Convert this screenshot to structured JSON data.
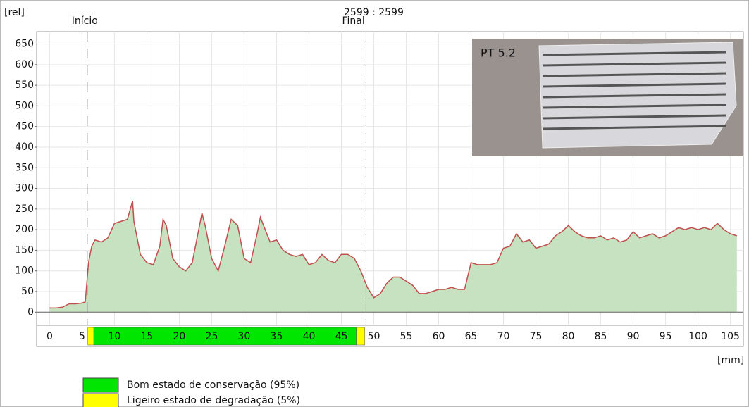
{
  "chart_data": {
    "type": "area",
    "y_label": "[rel]",
    "x_label": "[mm]",
    "readout": "2599 : 2599",
    "inset_label": "PT 5.2",
    "markers": [
      {
        "label": "Início",
        "x": 5.8
      },
      {
        "label": "Final",
        "x": 48.8
      }
    ],
    "x": [
      0,
      1,
      2,
      3,
      4,
      5,
      5.5,
      6,
      6.5,
      7,
      8,
      9,
      10,
      11,
      12,
      12.8,
      13,
      14,
      15,
      16,
      17,
      17.5,
      18,
      19,
      20,
      21,
      22,
      23,
      23.5,
      24,
      25,
      26,
      27,
      28,
      29,
      30,
      31,
      32,
      32.5,
      33,
      34,
      35,
      36,
      37,
      38,
      39,
      40,
      41,
      42,
      43,
      44,
      45,
      46,
      47,
      48,
      49,
      50,
      51,
      52,
      53,
      54,
      55,
      56,
      57,
      58,
      59,
      60,
      61,
      62,
      63,
      64,
      65,
      66,
      67,
      68,
      69,
      70,
      71,
      72,
      73,
      74,
      75,
      76,
      77,
      78,
      79,
      80,
      81,
      82,
      83,
      84,
      85,
      86,
      87,
      88,
      89,
      90,
      91,
      92,
      93,
      94,
      95,
      96,
      97,
      98,
      99,
      100,
      101,
      102,
      103,
      104,
      105,
      106
    ],
    "values": [
      10,
      10,
      12,
      20,
      20,
      22,
      25,
      120,
      160,
      175,
      170,
      180,
      215,
      220,
      225,
      270,
      220,
      140,
      120,
      115,
      160,
      225,
      210,
      130,
      110,
      100,
      120,
      200,
      240,
      210,
      130,
      100,
      160,
      225,
      210,
      130,
      120,
      190,
      230,
      210,
      170,
      175,
      150,
      140,
      135,
      140,
      115,
      120,
      140,
      125,
      120,
      140,
      140,
      130,
      100,
      60,
      35,
      45,
      70,
      85,
      85,
      75,
      65,
      45,
      45,
      50,
      55,
      55,
      60,
      55,
      55,
      120,
      115,
      115,
      115,
      120,
      155,
      160,
      190,
      170,
      175,
      155,
      160,
      165,
      185,
      195,
      210,
      195,
      185,
      180,
      180,
      185,
      175,
      180,
      170,
      175,
      195,
      180,
      185,
      190,
      180,
      185,
      195,
      205,
      200,
      205,
      200,
      205,
      200,
      215,
      200,
      190,
      185
    ],
    "color": "#c0504d",
    "fill_color": "#c6e2c0",
    "bands": [
      {
        "name": "Bom estado de conservação (95%)",
        "color": "#00e600",
        "ranges": [
          [
            6.8,
            47.3
          ]
        ]
      },
      {
        "name": "Ligeiro estado de degradação (5%)",
        "color": "#ffff00",
        "ranges": [
          [
            5.9,
            6.8
          ],
          [
            47.3,
            48.6
          ]
        ]
      }
    ],
    "xlim": [
      -2,
      107
    ],
    "ylim": [
      -32,
      680
    ],
    "xticks": [
      0,
      5,
      10,
      15,
      20,
      25,
      30,
      35,
      40,
      45,
      50,
      55,
      60,
      65,
      70,
      75,
      80,
      85,
      90,
      95,
      100,
      105
    ],
    "yticks": [
      0,
      50,
      100,
      150,
      200,
      250,
      300,
      350,
      400,
      450,
      500,
      550,
      600,
      650
    ],
    "grid": true
  }
}
